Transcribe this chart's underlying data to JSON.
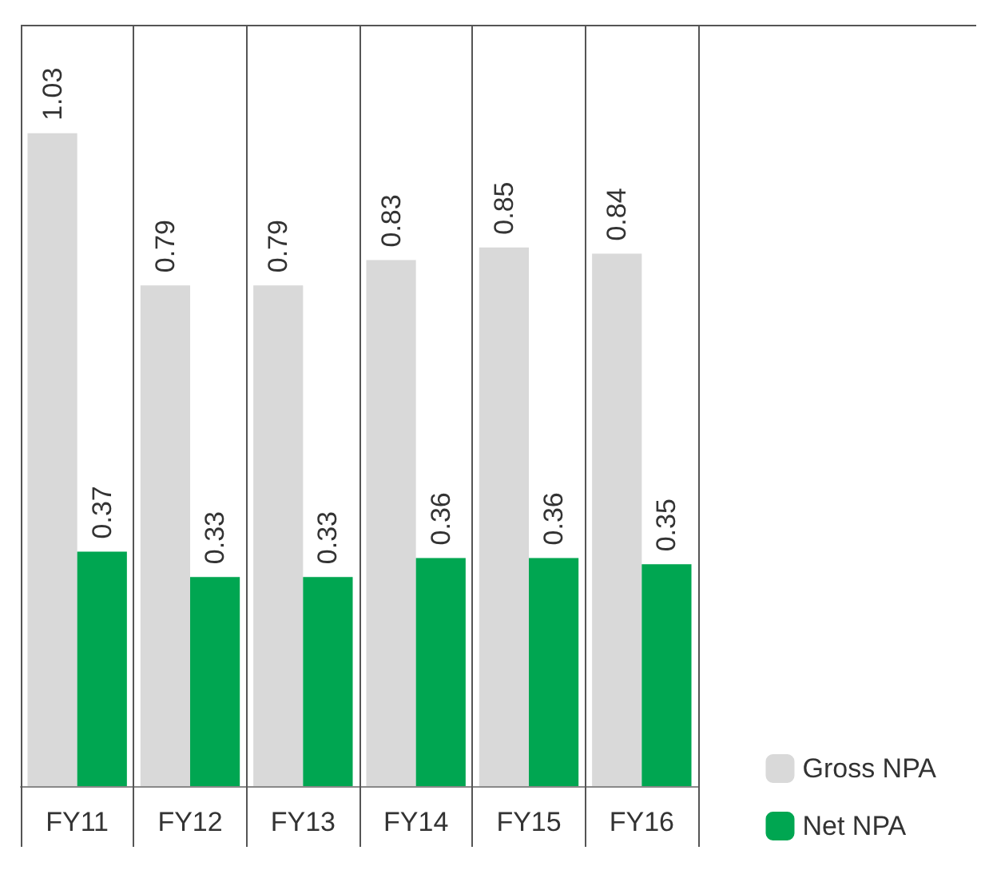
{
  "chart_data": {
    "type": "bar",
    "categories": [
      "FY11",
      "FY12",
      "FY13",
      "FY14",
      "FY15",
      "FY16"
    ],
    "series": [
      {
        "name": "Gross NPA",
        "color": "#d9d9d9",
        "values": [
          1.03,
          0.79,
          0.79,
          0.83,
          0.85,
          0.84
        ]
      },
      {
        "name": "Net NPA",
        "color": "#00a651",
        "values": [
          0.37,
          0.33,
          0.33,
          0.36,
          0.36,
          0.35
        ]
      }
    ],
    "data_labels": true,
    "grid": "x",
    "legend": "bottom right"
  }
}
